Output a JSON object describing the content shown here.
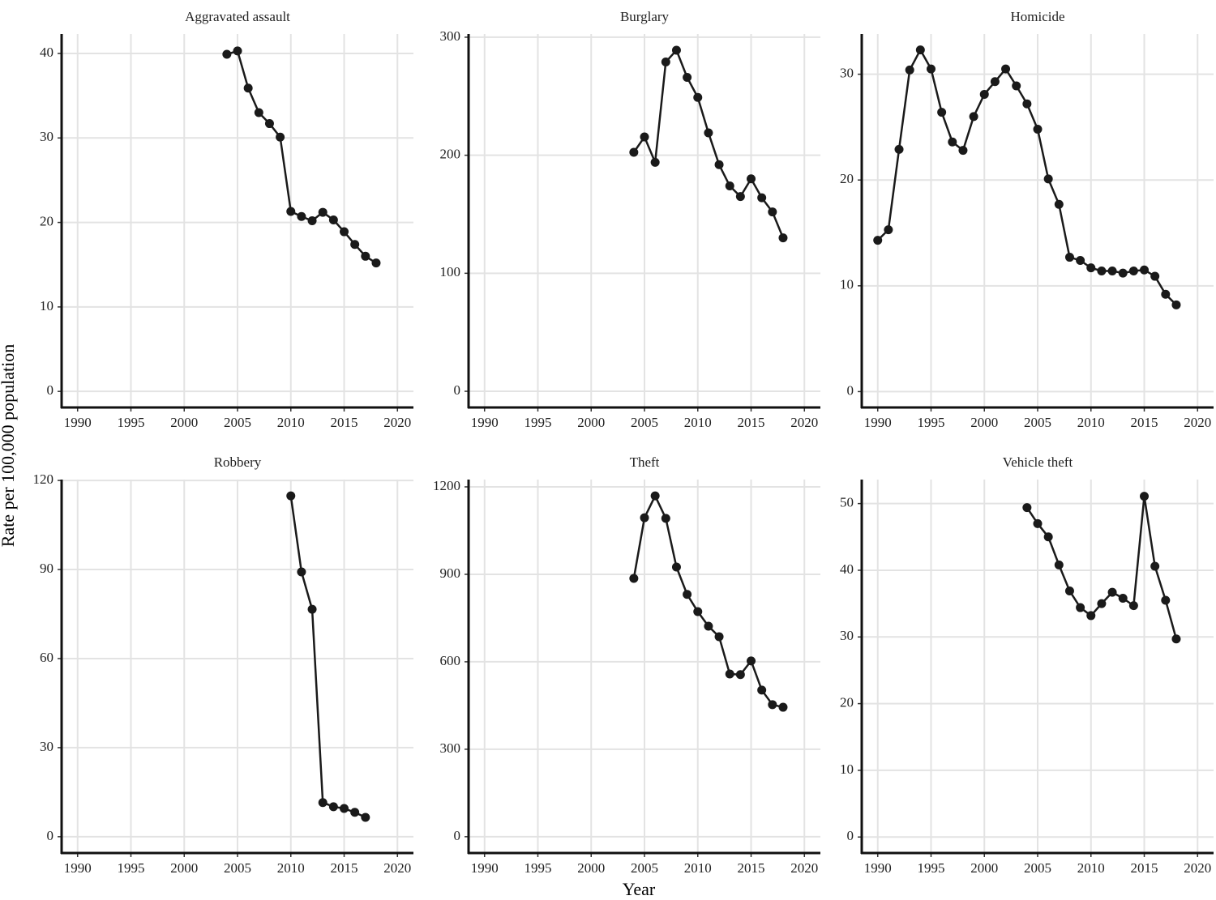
{
  "ylabel": "Rate per 100,000 population",
  "xlabel": "Year",
  "chart_data": [
    {
      "type": "line",
      "title": "Aggravated assault",
      "color": "#1a1a1a",
      "grid": true,
      "x": [
        2004,
        2005,
        2006,
        2007,
        2008,
        2009,
        2010,
        2011,
        2012,
        2013,
        2014,
        2015,
        2016,
        2017,
        2018
      ],
      "values": [
        39.9,
        40.3,
        35.9,
        33.0,
        31.7,
        30.1,
        21.3,
        20.7,
        20.2,
        21.2,
        20.3,
        18.9,
        17.4,
        16.0,
        15.2
      ],
      "xlim": [
        1988.5,
        2021.5
      ],
      "ylim": [
        -1.9,
        42.3
      ],
      "xticks": [
        1990,
        1995,
        2000,
        2005,
        2010,
        2015,
        2020
      ],
      "yticks": [
        0,
        10,
        20,
        30,
        40
      ]
    },
    {
      "type": "line",
      "title": "Burglary",
      "color": "#1a1a1a",
      "grid": true,
      "x": [
        2004,
        2005,
        2006,
        2007,
        2008,
        2009,
        2010,
        2011,
        2012,
        2013,
        2014,
        2015,
        2016,
        2017,
        2018
      ],
      "values": [
        202.5,
        215.5,
        194,
        279,
        289,
        266,
        249,
        219,
        192,
        174,
        165,
        180,
        164,
        152,
        130
      ],
      "xlim": [
        1988.5,
        2021.5
      ],
      "ylim": [
        -13.7,
        302.7
      ],
      "xticks": [
        1990,
        1995,
        2000,
        2005,
        2010,
        2015,
        2020
      ],
      "yticks": [
        0,
        100,
        200,
        300
      ]
    },
    {
      "type": "line",
      "title": "Homicide",
      "color": "#1a1a1a",
      "grid": true,
      "x": [
        1990,
        1991,
        1992,
        1993,
        1994,
        1995,
        1996,
        1997,
        1998,
        1999,
        2000,
        2001,
        2002,
        2003,
        2004,
        2005,
        2006,
        2007,
        2008,
        2009,
        2010,
        2011,
        2012,
        2013,
        2014,
        2015,
        2016,
        2017,
        2018
      ],
      "values": [
        14.3,
        15.3,
        22.9,
        30.4,
        32.3,
        30.5,
        26.4,
        23.6,
        22.8,
        26.0,
        28.1,
        29.3,
        30.5,
        28.9,
        27.2,
        24.8,
        20.1,
        17.7,
        12.7,
        12.4,
        11.7,
        11.4,
        11.4,
        11.2,
        11.4,
        11.5,
        10.9,
        9.2,
        8.2
      ],
      "xlim": [
        1988.5,
        2021.5
      ],
      "ylim": [
        -1.5,
        33.8
      ],
      "xticks": [
        1990,
        1995,
        2000,
        2005,
        2010,
        2015,
        2020
      ],
      "yticks": [
        0,
        10,
        20,
        30
      ]
    },
    {
      "type": "line",
      "title": "Robbery",
      "color": "#1a1a1a",
      "grid": true,
      "x": [
        2010,
        2011,
        2012,
        2013,
        2014,
        2015,
        2016,
        2017
      ],
      "values": [
        114.8,
        89.2,
        76.6,
        11.5,
        10.1,
        9.5,
        8.2,
        6.5
      ],
      "xlim": [
        1988.5,
        2021.5
      ],
      "ylim": [
        -5.5,
        120.3
      ],
      "xticks": [
        1990,
        1995,
        2000,
        2005,
        2010,
        2015,
        2020
      ],
      "yticks": [
        0,
        30,
        60,
        90,
        120
      ]
    },
    {
      "type": "line",
      "title": "Theft",
      "color": "#1a1a1a",
      "grid": true,
      "x": [
        2004,
        2005,
        2006,
        2007,
        2008,
        2009,
        2010,
        2011,
        2012,
        2013,
        2014,
        2015,
        2016,
        2017,
        2018
      ],
      "values": [
        886,
        1094,
        1169,
        1092,
        925,
        831,
        772,
        722,
        686,
        558,
        556,
        603,
        503,
        453,
        444
      ],
      "xlim": [
        1988.5,
        2021.5
      ],
      "ylim": [
        -56,
        1225
      ],
      "xticks": [
        1990,
        1995,
        2000,
        2005,
        2010,
        2015,
        2020
      ],
      "yticks": [
        0,
        300,
        600,
        900,
        1200
      ]
    },
    {
      "type": "line",
      "title": "Vehicle theft",
      "color": "#1a1a1a",
      "grid": true,
      "x": [
        2004,
        2005,
        2006,
        2007,
        2008,
        2009,
        2010,
        2011,
        2012,
        2013,
        2014,
        2015,
        2016,
        2017,
        2018
      ],
      "values": [
        49.4,
        47.0,
        45.0,
        40.8,
        36.9,
        34.4,
        33.2,
        35.0,
        36.7,
        35.8,
        34.7,
        51.1,
        40.6,
        35.5,
        29.7
      ],
      "xlim": [
        1988.5,
        2021.5
      ],
      "ylim": [
        -2.4,
        53.6
      ],
      "xticks": [
        1990,
        1995,
        2000,
        2005,
        2010,
        2015,
        2020
      ],
      "yticks": [
        0,
        10,
        20,
        30,
        40,
        50
      ]
    }
  ]
}
